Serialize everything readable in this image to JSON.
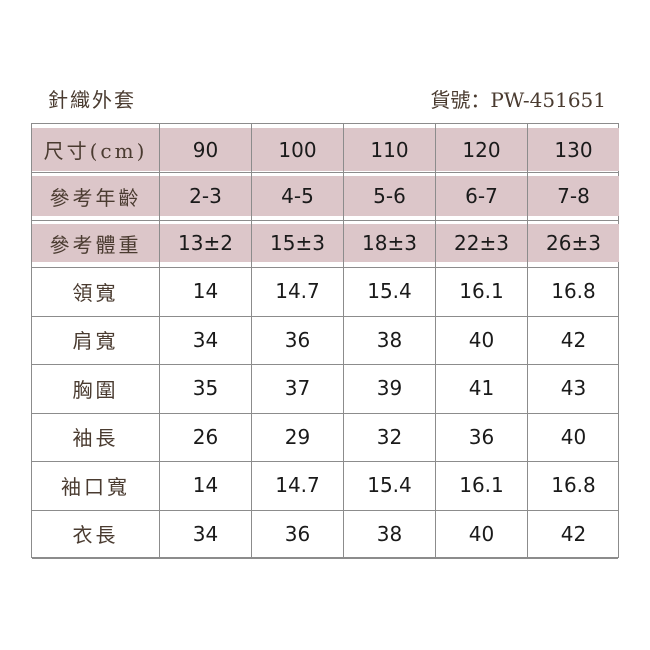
{
  "header": {
    "title": "針織外套",
    "product_code": "貨號：PW-451651"
  },
  "table": {
    "header_rows": [
      {
        "label": "尺寸(cm)",
        "values": [
          "90",
          "100",
          "110",
          "120",
          "130"
        ]
      },
      {
        "label": "參考年齡",
        "values": [
          "2-3",
          "4-5",
          "5-6",
          "6-7",
          "7-8"
        ]
      },
      {
        "label": "參考體重",
        "values": [
          "13±2",
          "15±3",
          "18±3",
          "22±3",
          "26±3"
        ]
      }
    ],
    "rows": [
      {
        "label": "領寬",
        "values": [
          "14",
          "14.7",
          "15.4",
          "16.1",
          "16.8"
        ]
      },
      {
        "label": "肩寬",
        "values": [
          "34",
          "36",
          "38",
          "40",
          "42"
        ]
      },
      {
        "label": "胸圍",
        "values": [
          "35",
          "37",
          "39",
          "41",
          "43"
        ]
      },
      {
        "label": "袖長",
        "values": [
          "26",
          "29",
          "32",
          "36",
          "40"
        ]
      },
      {
        "label": "袖口寬",
        "values": [
          "14",
          "14.7",
          "15.4",
          "16.1",
          "16.8"
        ]
      },
      {
        "label": "衣長",
        "values": [
          "34",
          "36",
          "38",
          "40",
          "42"
        ]
      }
    ]
  },
  "colors": {
    "header_fill": "#dcc6c9",
    "label_text": "#4a3b30"
  }
}
